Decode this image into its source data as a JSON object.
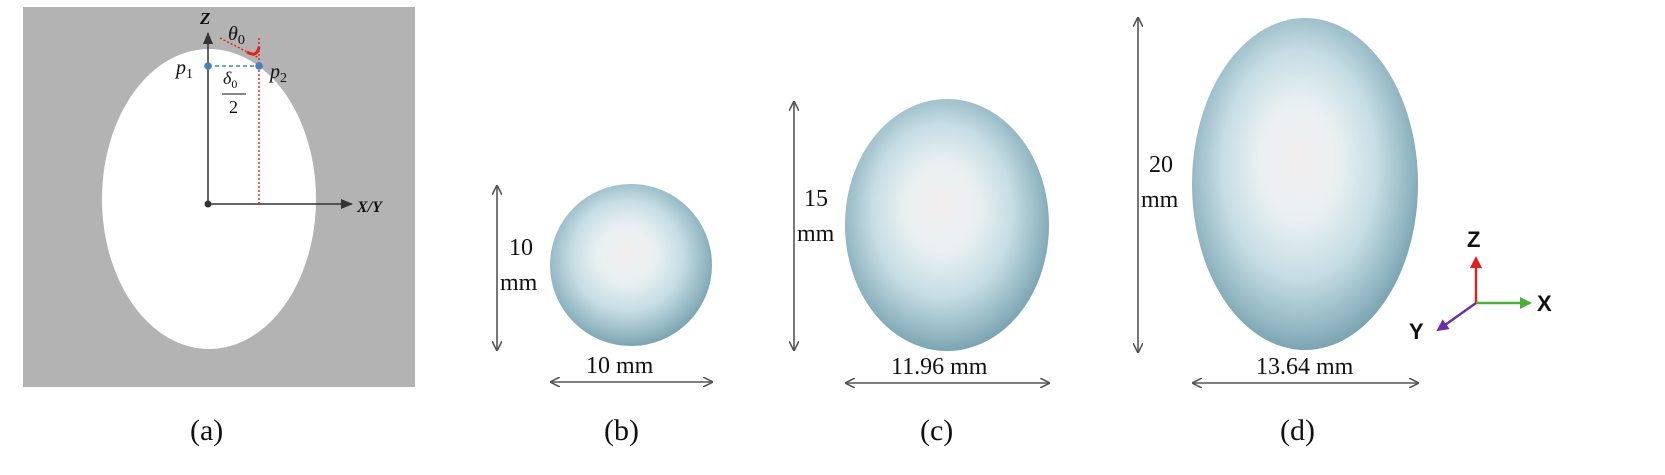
{
  "panels": {
    "a": {
      "caption": "(a)",
      "z_axis_label": "Z",
      "xy_axis_label": "X/Y",
      "p1_label": "p",
      "p1_sub": "1",
      "p2_label": "p",
      "p2_sub": "2",
      "theta_label": "θ",
      "theta_sub": "0",
      "delta_numerator": "δ",
      "delta_sub": "0",
      "delta_denominator": "2",
      "colors": {
        "background": "#b3b3b3",
        "ellipse": "#ffffff",
        "angle_mark": "#e0201a",
        "points": "#4a7fc1"
      }
    },
    "b": {
      "caption": "(b)",
      "height_value": "10",
      "height_unit": "mm",
      "width_label": "10 mm"
    },
    "c": {
      "caption": "(c)",
      "height_value": "15",
      "height_unit": "mm",
      "width_label": "11.96 mm"
    },
    "d": {
      "caption": "(d)",
      "height_value": "20",
      "height_unit": "mm",
      "width_label": "13.64 mm"
    }
  },
  "triad": {
    "z_label": "Z",
    "x_label": "X",
    "y_label": "Y",
    "colors": {
      "z": "#e0201a",
      "x": "#4caf3a",
      "y": "#6a2fa8"
    }
  }
}
